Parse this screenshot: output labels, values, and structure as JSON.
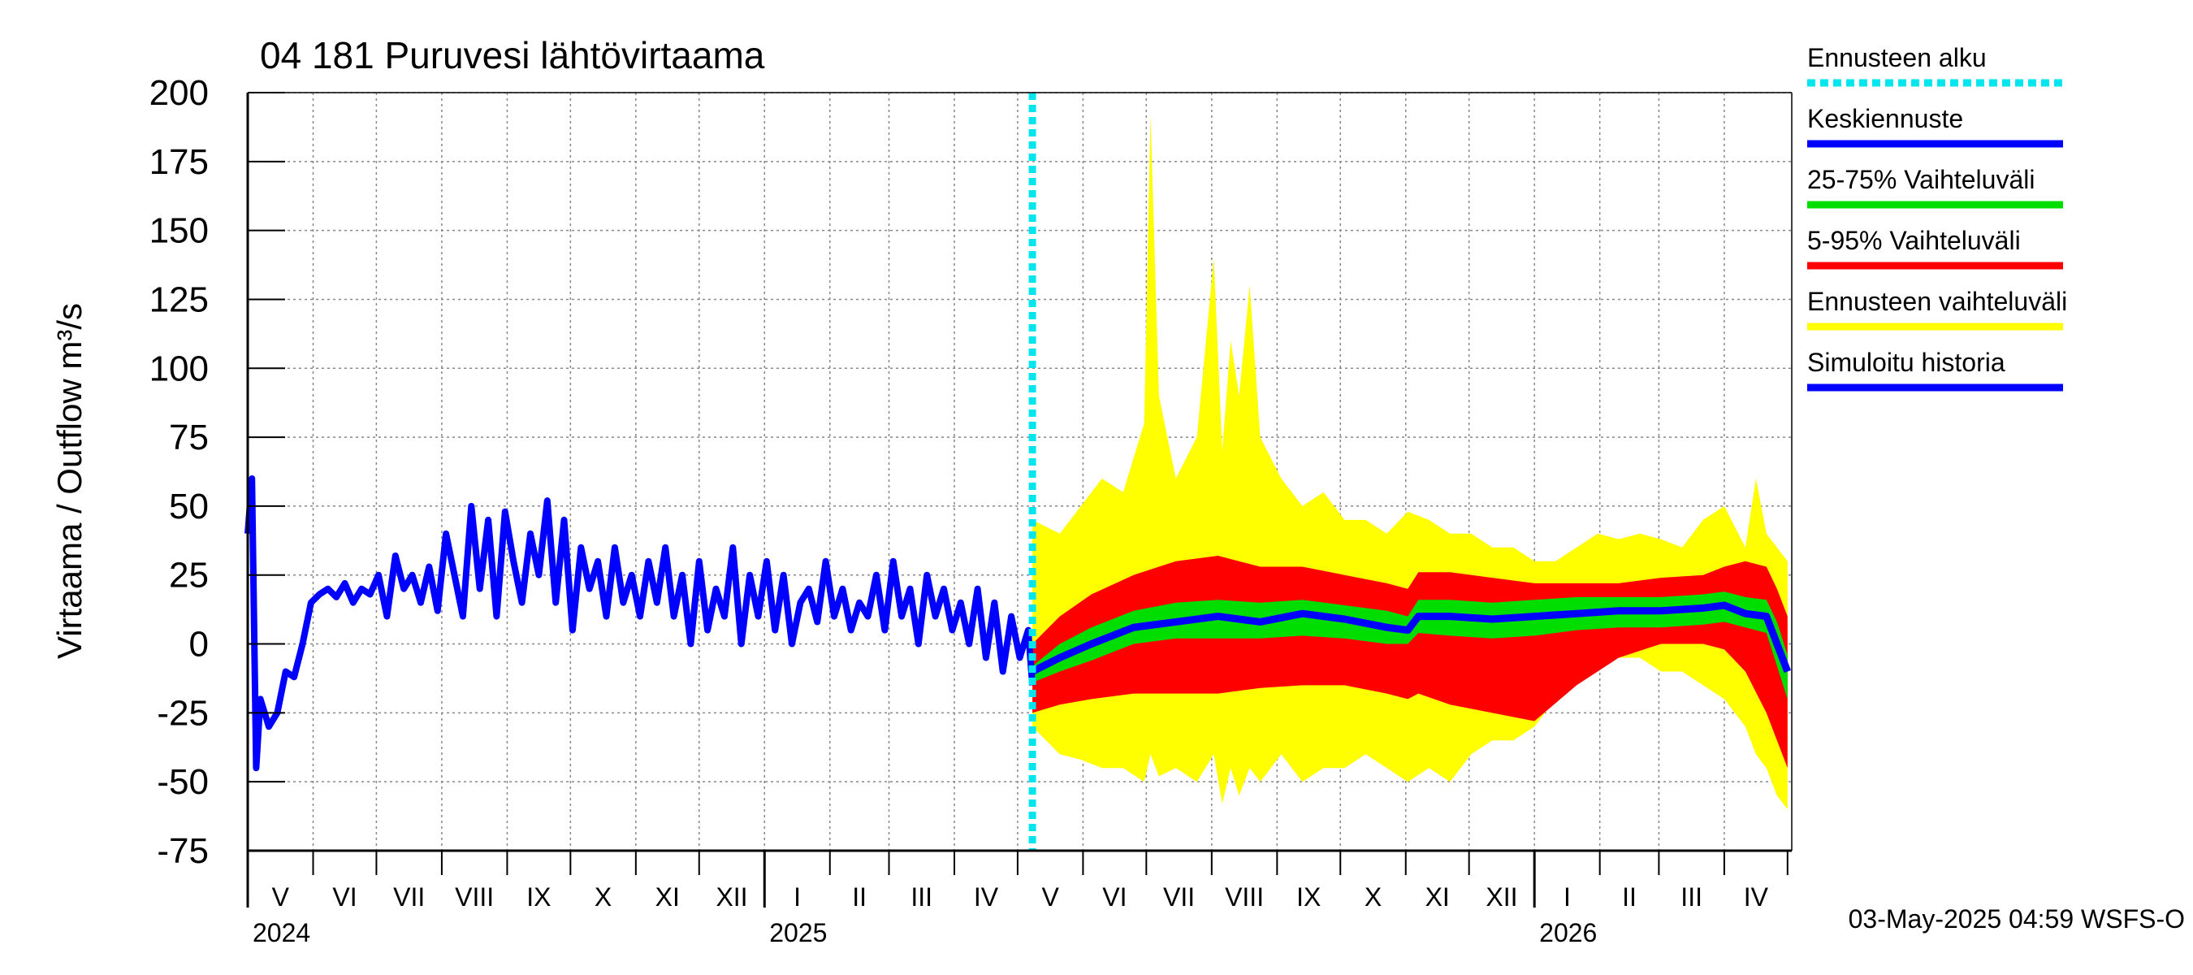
{
  "chart_data": {
    "type": "area",
    "title": "04 181 Puruvesi lähtövirtaama",
    "ylabel": "Virtaama / Outflow    m³/s",
    "ylim": [
      -75,
      200
    ],
    "yticks": [
      -75,
      -50,
      -25,
      0,
      25,
      50,
      75,
      100,
      125,
      150,
      175,
      200
    ],
    "ytick_labels": [
      "-75",
      "-50",
      "-25",
      "0",
      "25",
      "50",
      "75",
      "100",
      "125",
      "150",
      "175",
      "200"
    ],
    "x_unit": "days since 2024-04-24",
    "xlim": [
      0,
      732
    ],
    "forecast_start": 372,
    "months": [
      {
        "label": "V",
        "start": 0,
        "end": 31
      },
      {
        "label": "VI",
        "start": 31,
        "end": 61
      },
      {
        "label": "VII",
        "start": 61,
        "end": 92
      },
      {
        "label": "VIII",
        "start": 92,
        "end": 123
      },
      {
        "label": "IX",
        "start": 123,
        "end": 153
      },
      {
        "label": "X",
        "start": 153,
        "end": 184
      },
      {
        "label": "XI",
        "start": 184,
        "end": 214
      },
      {
        "label": "XII",
        "start": 214,
        "end": 245
      },
      {
        "label": "I",
        "start": 245,
        "end": 276
      },
      {
        "label": "II",
        "start": 276,
        "end": 304
      },
      {
        "label": "III",
        "start": 304,
        "end": 335
      },
      {
        "label": "IV",
        "start": 335,
        "end": 365
      },
      {
        "label": "V",
        "start": 365,
        "end": 396
      },
      {
        "label": "VI",
        "start": 396,
        "end": 426
      },
      {
        "label": "VII",
        "start": 426,
        "end": 457
      },
      {
        "label": "VIII",
        "start": 457,
        "end": 488
      },
      {
        "label": "IX",
        "start": 488,
        "end": 518
      },
      {
        "label": "X",
        "start": 518,
        "end": 549
      },
      {
        "label": "XI",
        "start": 549,
        "end": 579
      },
      {
        "label": "XII",
        "start": 579,
        "end": 610
      },
      {
        "label": "I",
        "start": 610,
        "end": 641
      },
      {
        "label": "II",
        "start": 641,
        "end": 669
      },
      {
        "label": "III",
        "start": 669,
        "end": 700
      },
      {
        "label": "IV",
        "start": 700,
        "end": 730
      }
    ],
    "years": [
      {
        "label": "2024",
        "at": 0
      },
      {
        "label": "2025",
        "at": 245
      },
      {
        "label": "2026",
        "at": 610
      }
    ],
    "series": [
      {
        "name": "Simuloitu historia",
        "color": "#0000ff",
        "x": [
          0,
          2,
          4,
          6,
          10,
          14,
          18,
          22,
          26,
          30,
          34,
          38,
          42,
          46,
          50,
          54,
          58,
          62,
          66,
          70,
          74,
          78,
          82,
          86,
          90,
          94,
          98,
          102,
          106,
          110,
          114,
          118,
          122,
          126,
          130,
          134,
          138,
          142,
          146,
          150,
          154,
          158,
          162,
          166,
          170,
          174,
          178,
          182,
          186,
          190,
          194,
          198,
          202,
          206,
          210,
          214,
          218,
          222,
          226,
          230,
          234,
          238,
          242,
          246,
          250,
          254,
          258,
          262,
          266,
          270,
          274,
          278,
          282,
          286,
          290,
          294,
          298,
          302,
          306,
          310,
          314,
          318,
          322,
          326,
          330,
          334,
          338,
          342,
          346,
          350,
          354,
          358,
          362,
          366,
          370,
          372
        ],
        "values": [
          40,
          60,
          -45,
          -20,
          -30,
          -25,
          -10,
          -12,
          0,
          15,
          18,
          20,
          17,
          22,
          15,
          20,
          18,
          25,
          10,
          32,
          20,
          25,
          15,
          28,
          12,
          40,
          25,
          10,
          50,
          20,
          45,
          10,
          48,
          30,
          15,
          40,
          25,
          52,
          15,
          45,
          5,
          35,
          20,
          30,
          10,
          35,
          15,
          25,
          10,
          30,
          15,
          35,
          10,
          25,
          0,
          30,
          5,
          20,
          10,
          35,
          0,
          25,
          10,
          30,
          5,
          25,
          0,
          15,
          20,
          8,
          30,
          10,
          20,
          5,
          15,
          10,
          25,
          5,
          30,
          10,
          20,
          0,
          25,
          10,
          20,
          5,
          15,
          0,
          20,
          -5,
          15,
          -10,
          10,
          -5,
          5,
          -15
        ]
      },
      {
        "name": "Keskiennuste",
        "color": "#0000ff",
        "x": [
          372,
          385,
          400,
          420,
          440,
          460,
          480,
          500,
          520,
          540,
          550,
          555,
          570,
          590,
          610,
          630,
          650,
          670,
          690,
          700,
          710,
          720,
          725,
          730
        ],
        "values": [
          -10,
          -5,
          0,
          6,
          8,
          10,
          8,
          11,
          9,
          6,
          5,
          10,
          10,
          9,
          10,
          11,
          12,
          12,
          13,
          14,
          11,
          10,
          0,
          -10
        ]
      },
      {
        "name": "25-75% Vaihteluväli",
        "color": "#00dd00",
        "x": [
          372,
          385,
          400,
          420,
          440,
          460,
          480,
          500,
          520,
          540,
          550,
          555,
          570,
          590,
          610,
          630,
          650,
          670,
          690,
          700,
          710,
          720,
          725,
          730
        ],
        "upper": [
          -8,
          0,
          6,
          12,
          15,
          16,
          15,
          16,
          14,
          12,
          10,
          16,
          16,
          15,
          16,
          17,
          17,
          17,
          18,
          19,
          17,
          16,
          8,
          -4
        ],
        "lower": [
          -14,
          -10,
          -6,
          0,
          2,
          2,
          2,
          3,
          2,
          0,
          0,
          4,
          3,
          2,
          3,
          5,
          6,
          6,
          7,
          8,
          6,
          4,
          -8,
          -20
        ]
      },
      {
        "name": "5-95% Vaihteluväli",
        "color": "#ff0000",
        "x": [
          372,
          385,
          400,
          420,
          440,
          460,
          480,
          500,
          520,
          540,
          550,
          555,
          570,
          590,
          610,
          630,
          650,
          670,
          690,
          700,
          710,
          720,
          725,
          730
        ],
        "upper": [
          0,
          10,
          18,
          25,
          30,
          32,
          28,
          28,
          25,
          22,
          20,
          26,
          26,
          24,
          22,
          22,
          22,
          24,
          25,
          28,
          30,
          28,
          20,
          10
        ],
        "lower": [
          -25,
          -22,
          -20,
          -18,
          -18,
          -18,
          -16,
          -15,
          -15,
          -18,
          -20,
          -18,
          -22,
          -25,
          -28,
          -15,
          -5,
          0,
          0,
          -2,
          -10,
          -25,
          -35,
          -45
        ]
      },
      {
        "name": "Ennusteen vaihteluväli",
        "color": "#ffff00",
        "x": [
          372,
          385,
          395,
          405,
          415,
          425,
          428,
          432,
          440,
          450,
          458,
          462,
          466,
          470,
          475,
          480,
          490,
          500,
          510,
          520,
          530,
          540,
          550,
          560,
          570,
          580,
          590,
          600,
          610,
          620,
          630,
          640,
          650,
          660,
          670,
          680,
          690,
          700,
          710,
          715,
          720,
          725,
          730
        ],
        "upper": [
          45,
          40,
          50,
          60,
          55,
          80,
          192,
          90,
          60,
          75,
          140,
          70,
          110,
          90,
          130,
          75,
          60,
          50,
          55,
          45,
          45,
          40,
          48,
          45,
          40,
          40,
          35,
          35,
          30,
          30,
          35,
          40,
          38,
          40,
          38,
          35,
          45,
          50,
          35,
          60,
          40,
          35,
          30
        ],
        "lower": [
          -30,
          -40,
          -42,
          -45,
          -45,
          -50,
          -40,
          -48,
          -45,
          -50,
          -40,
          -58,
          -45,
          -55,
          -45,
          -50,
          -40,
          -50,
          -45,
          -45,
          -40,
          -45,
          -50,
          -45,
          -50,
          -40,
          -35,
          -35,
          -30,
          -20,
          -10,
          -5,
          -5,
          -5,
          -10,
          -10,
          -15,
          -20,
          -30,
          -40,
          -45,
          -55,
          -60
        ]
      }
    ],
    "legend": [
      {
        "label": "Ennusteen alku",
        "color": "#00e5ee",
        "style": "dotted"
      },
      {
        "label": "Keskiennuste",
        "color": "#0000ff",
        "style": "solid"
      },
      {
        "label": "25-75% Vaihteluväli",
        "color": "#00dd00",
        "style": "solid"
      },
      {
        "label": "5-95% Vaihteluväli",
        "color": "#ff0000",
        "style": "solid"
      },
      {
        "label": "Ennusteen vaihteluväli",
        "color": "#ffff00",
        "style": "solid"
      },
      {
        "label": "Simuloitu historia",
        "color": "#0000ff",
        "style": "solid"
      }
    ],
    "legend_position": "right",
    "grid": true,
    "footer": "03-May-2025 04:59 WSFS-O"
  }
}
